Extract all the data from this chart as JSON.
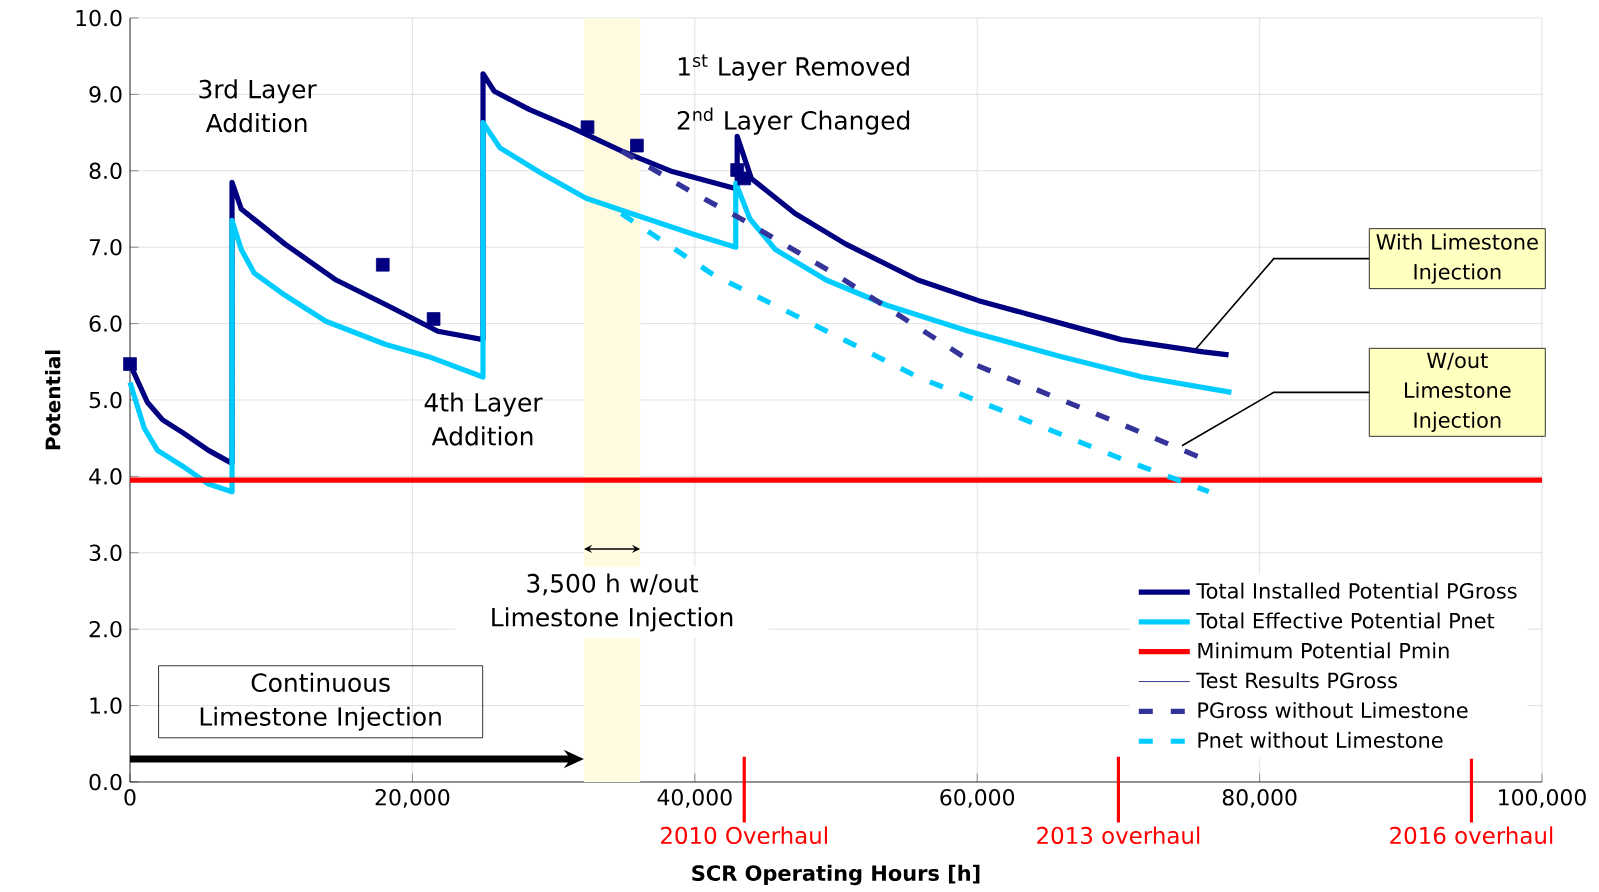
{
  "chart_data": {
    "type": "line",
    "xlabel": "SCR Operating Hours [h]",
    "ylabel": "Potential",
    "xlim": [
      0,
      100000
    ],
    "ylim": [
      0,
      10
    ],
    "xticks": [
      {
        "value": 0,
        "label": "0"
      },
      {
        "value": 20000,
        "label": "20,000"
      },
      {
        "value": 40000,
        "label": "40,000"
      },
      {
        "value": 60000,
        "label": "60,000"
      },
      {
        "value": 80000,
        "label": "80,000"
      },
      {
        "value": 100000,
        "label": "100,000"
      }
    ],
    "yticks": [
      {
        "value": 0,
        "label": "0.0"
      },
      {
        "value": 1,
        "label": "1.0"
      },
      {
        "value": 2,
        "label": "2.0"
      },
      {
        "value": 3,
        "label": "3.0"
      },
      {
        "value": 4,
        "label": "4.0"
      },
      {
        "value": 5,
        "label": "5.0"
      },
      {
        "value": 6,
        "label": "6.0"
      },
      {
        "value": 7,
        "label": "7.0"
      },
      {
        "value": 8,
        "label": "8.0"
      },
      {
        "value": 9,
        "label": "9.0"
      },
      {
        "value": 10,
        "label": "10.0"
      }
    ],
    "grid": true,
    "legend": "bottom right",
    "series": [
      {
        "name": "Total Installed Potential PGross",
        "line_style": "solid",
        "color": "#000080",
        "x": [
          0,
          1230,
          2310,
          3760,
          5560,
          7225,
          7225,
          7880,
          10980,
          14600,
          18200,
          21800,
          25000,
          25000,
          25800,
          28300,
          31200,
          34800,
          38400,
          42800,
          43000,
          43000,
          44000,
          47100,
          50700,
          55800,
          60100,
          66600,
          70200,
          76000,
          77800
        ],
        "values": [
          5.47,
          4.97,
          4.74,
          4.57,
          4.34,
          4.17,
          7.85,
          7.5,
          7.04,
          6.57,
          6.24,
          5.9,
          5.79,
          9.27,
          9.04,
          8.8,
          8.57,
          8.26,
          7.99,
          7.77,
          7.75,
          8.45,
          7.9,
          7.44,
          7.04,
          6.57,
          6.3,
          5.97,
          5.79,
          5.63,
          5.59
        ]
      },
      {
        "name": "Total Effective Potential Pnet",
        "line_style": "solid",
        "color": "#00ccff",
        "x": [
          0,
          1010,
          1950,
          3760,
          5560,
          7225,
          7225,
          7880,
          8800,
          10980,
          13870,
          18060,
          21100,
          25000,
          25000,
          26200,
          29100,
          32300,
          35500,
          39900,
          42900,
          42900,
          43900,
          45700,
          49300,
          53600,
          59400,
          65900,
          71700,
          78000
        ],
        "values": [
          5.23,
          4.63,
          4.34,
          4.13,
          3.9,
          3.8,
          7.35,
          6.97,
          6.66,
          6.37,
          6.03,
          5.73,
          5.57,
          5.3,
          8.63,
          8.3,
          7.97,
          7.64,
          7.44,
          7.17,
          7.0,
          7.84,
          7.37,
          6.97,
          6.57,
          6.24,
          5.9,
          5.57,
          5.3,
          5.1
        ]
      },
      {
        "name": "Minimum Potential Pmin",
        "line_style": "solid",
        "color": "#ff0000",
        "x": [
          0,
          100000
        ],
        "values": [
          3.95,
          3.95
        ]
      },
      {
        "name": "Test Results PGross",
        "type": "scatter",
        "marker": "square",
        "color": "#000080",
        "x": [
          0,
          17900,
          21500,
          32400,
          35900,
          43000,
          43500
        ],
        "values": [
          5.47,
          6.77,
          6.06,
          8.57,
          8.33,
          8.01,
          7.9
        ]
      },
      {
        "name": "PGross without Limestone",
        "line_style": "dashed",
        "color": "#333399",
        "x": [
          34800,
          40000,
          43000,
          50000,
          60000,
          70000,
          76000
        ],
        "values": [
          8.26,
          7.7,
          7.4,
          6.64,
          5.45,
          4.7,
          4.23
        ]
      },
      {
        "name": "Pnet without Limestone",
        "line_style": "dashed",
        "color": "#00ccff",
        "x": [
          34800,
          41300,
          48600,
          55800,
          63000,
          70200,
          76400
        ],
        "values": [
          7.44,
          6.64,
          5.97,
          5.3,
          4.77,
          4.23,
          3.8
        ]
      }
    ],
    "bands": [
      {
        "axis": "x",
        "from": 32150,
        "to": 36130,
        "label": "3,500 h w/out Limestone Injection",
        "color": "#fffbe0"
      }
    ],
    "ref_lines": [
      {
        "axis": "x",
        "value": 43500,
        "label": "2010 Overhaul",
        "color": "#ff0000"
      },
      {
        "axis": "x",
        "value": 70000,
        "label": "2013 overhaul",
        "color": "#ff0000"
      },
      {
        "axis": "x",
        "value": 95000,
        "label": "2016 overhaul",
        "color": "#ff0000"
      }
    ],
    "annotations": [
      "3rd Layer Addition",
      "4th Layer Addition",
      "1$^{st}$ Layer Removed",
      "2$^{nd}$ Layer Changed",
      "Continuous Limestone Injection",
      {
        "text": "With Limestone Injection",
        "x": 75500,
        "y": 5.67
      },
      "W/out Limestone Injection"
    ]
  }
}
